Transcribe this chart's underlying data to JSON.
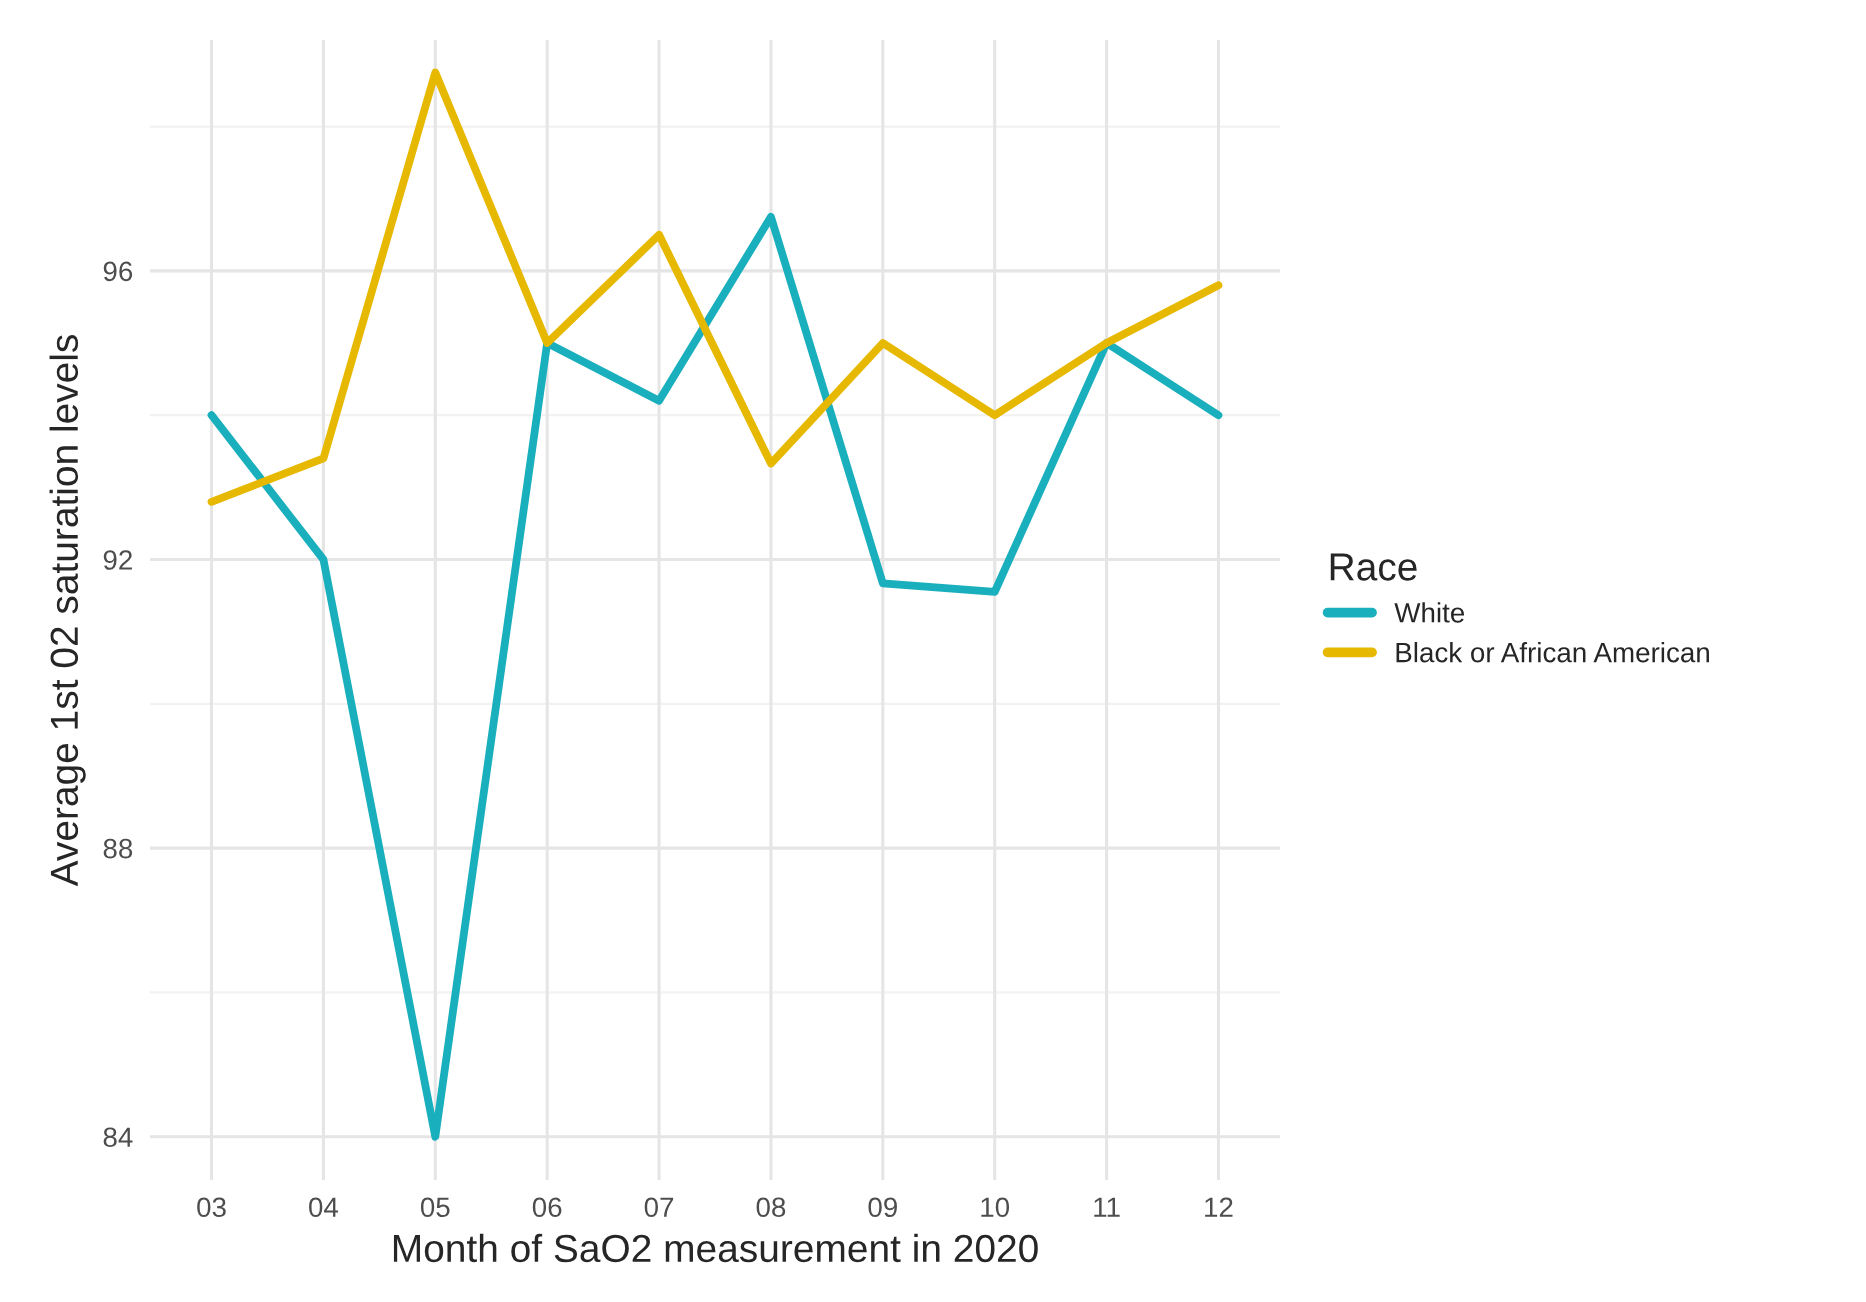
{
  "chart_data": {
    "type": "line",
    "xlabel": "Month of SaO2 measurement in 2020",
    "ylabel": "Average 1st 02 saturation levels",
    "legend_title": "Race",
    "categories": [
      "03",
      "04",
      "05",
      "06",
      "07",
      "08",
      "09",
      "10",
      "11",
      "12"
    ],
    "series": [
      {
        "name": "White",
        "color": "#1aafbc",
        "values": [
          94.0,
          92.0,
          84.0,
          95.0,
          94.2,
          96.75,
          91.67,
          91.55,
          95.0,
          94.0
        ]
      },
      {
        "name": "Black or African American",
        "color": "#e7b800",
        "values": [
          92.8,
          93.4,
          98.75,
          95.0,
          96.5,
          93.33,
          95.0,
          94.0,
          95.0,
          95.8
        ]
      }
    ],
    "ylim": [
      83.4,
      99.2
    ],
    "yticks": [
      84,
      88,
      92,
      96
    ],
    "grid": true,
    "legend": "right",
    "marker": "none",
    "line_style": "solid"
  }
}
